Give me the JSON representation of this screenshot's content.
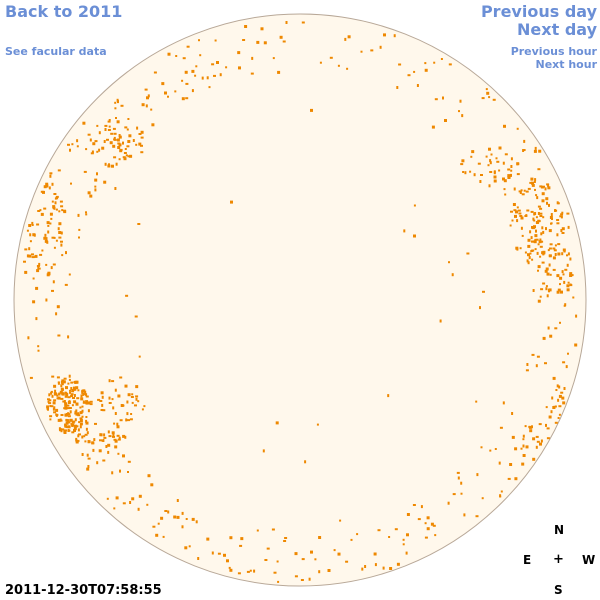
{
  "nav": {
    "back_label": "Back to 2011",
    "facular_label": "See facular data",
    "prev_day_label": "Previous day",
    "next_day_label": "Next day",
    "prev_hour_label": "Previous hour",
    "next_hour_label": "Next hour"
  },
  "timestamp": "2011-12-30T07:58:55",
  "compass": {
    "north": "N",
    "east": "E",
    "center": "+",
    "west": "W",
    "south": "S"
  },
  "colors": {
    "disk_fill": "#fff8ec",
    "disk_border": "#b8a898",
    "facula": "#ee8800",
    "link": "#6b8fd6"
  }
}
